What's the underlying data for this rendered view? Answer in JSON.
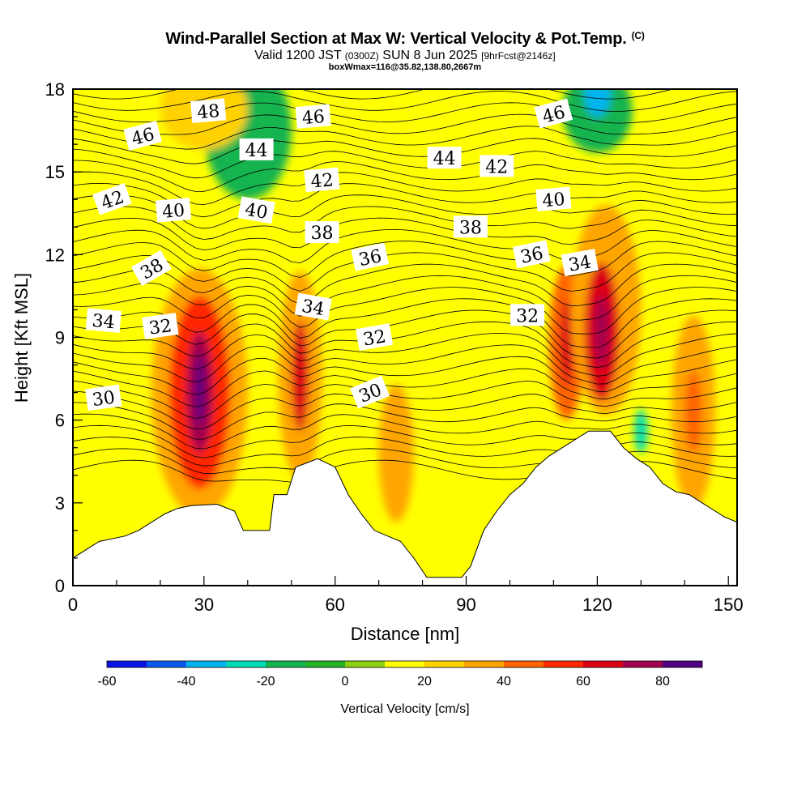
{
  "header": {
    "title_main": "Wind-Parallel Section at Max W: Vertical Velocity & Pot.Temp.",
    "title_tag": "(C)",
    "valid_prefix": "Valid 1200 JST",
    "valid_utc": "(0300Z)",
    "valid_date": "SUN 8 Jun 2025",
    "forecast": "[9hrFcst@2146z]",
    "box_info": "boxWmax=116@35.82,138.80,2667m"
  },
  "chart_data": {
    "type": "heatmap",
    "xlabel": "Distance [nm]",
    "ylabel": "Height [Kft MSL]",
    "xlim": [
      0,
      152
    ],
    "ylim": [
      0,
      18
    ],
    "x_ticks": [
      0,
      30,
      60,
      90,
      120,
      150
    ],
    "y_ticks": [
      0,
      3,
      6,
      9,
      12,
      15,
      18
    ],
    "colorbar": {
      "label": "Vertical Velocity [cm/s]",
      "range": [
        -60,
        90
      ],
      "ticks": [
        -60,
        -40,
        -20,
        0,
        20,
        40,
        60,
        80
      ],
      "colors": [
        "#0a14e6",
        "#0a5af0",
        "#00b4f0",
        "#00dcb4",
        "#14b450",
        "#28b428",
        "#8cd214",
        "#ffff00",
        "#ffd200",
        "#ffa500",
        "#ff6400",
        "#ff2800",
        "#dc0014",
        "#a00050",
        "#500082"
      ]
    },
    "terrain_kft": [
      [
        0,
        1.0
      ],
      [
        3,
        1.3
      ],
      [
        6,
        1.6
      ],
      [
        12,
        1.8
      ],
      [
        15,
        2.0
      ],
      [
        18,
        2.3
      ],
      [
        21,
        2.6
      ],
      [
        24,
        2.8
      ],
      [
        27,
        2.9
      ],
      [
        33,
        2.95
      ],
      [
        37,
        2.7
      ],
      [
        39,
        2.0
      ],
      [
        45,
        2.0
      ],
      [
        46,
        3.3
      ],
      [
        49,
        3.3
      ],
      [
        51,
        4.3
      ],
      [
        56,
        4.6
      ],
      [
        60,
        4.3
      ],
      [
        63,
        3.3
      ],
      [
        66,
        2.6
      ],
      [
        69,
        2.0
      ],
      [
        72,
        1.8
      ],
      [
        75,
        1.6
      ],
      [
        78,
        1.0
      ],
      [
        81,
        0.3
      ],
      [
        89,
        0.3
      ],
      [
        91,
        0.7
      ],
      [
        94,
        2.0
      ],
      [
        97,
        2.7
      ],
      [
        100,
        3.3
      ],
      [
        103,
        3.7
      ],
      [
        106,
        4.3
      ],
      [
        109,
        4.7
      ],
      [
        112,
        5.0
      ],
      [
        115,
        5.3
      ],
      [
        118,
        5.6
      ],
      [
        123,
        5.6
      ],
      [
        126,
        5.0
      ],
      [
        129,
        4.6
      ],
      [
        132,
        4.3
      ],
      [
        135,
        3.7
      ],
      [
        138,
        3.4
      ],
      [
        141,
        3.3
      ],
      [
        144,
        3.0
      ],
      [
        147,
        2.7
      ],
      [
        149,
        2.5
      ],
      [
        152,
        2.3
      ]
    ],
    "velocity_cells": [
      {
        "x": 29,
        "y": 7.0,
        "rx": 11,
        "ry": 4.5,
        "w": 35
      },
      {
        "x": 29,
        "y": 7.0,
        "rx": 7,
        "ry": 3.5,
        "w": 55
      },
      {
        "x": 29,
        "y": 7.0,
        "rx": 3,
        "ry": 2.2,
        "w": 75
      },
      {
        "x": 29,
        "y": 7.1,
        "rx": 1,
        "ry": 1.3,
        "w": 90
      },
      {
        "x": 52,
        "y": 7.6,
        "rx": 5,
        "ry": 3.8,
        "w": 30
      },
      {
        "x": 52,
        "y": 7.6,
        "rx": 2,
        "ry": 2.0,
        "w": 65
      },
      {
        "x": 74,
        "y": 4.8,
        "rx": 4,
        "ry": 2.5,
        "w": 30
      },
      {
        "x": 113,
        "y": 8.8,
        "rx": 4,
        "ry": 2.8,
        "w": 45
      },
      {
        "x": 113,
        "y": 8.8,
        "rx": 1.5,
        "ry": 1.6,
        "w": 65
      },
      {
        "x": 122,
        "y": 10.0,
        "rx": 8,
        "ry": 3.8,
        "w": 35
      },
      {
        "x": 121,
        "y": 9.2,
        "rx": 4,
        "ry": 2.5,
        "w": 60
      },
      {
        "x": 121,
        "y": 9.2,
        "rx": 1.5,
        "ry": 1.3,
        "w": 75
      },
      {
        "x": 142,
        "y": 6.3,
        "rx": 5,
        "ry": 3.5,
        "w": 30
      },
      {
        "x": 142,
        "y": 6.3,
        "rx": 2,
        "ry": 1.5,
        "w": 45
      },
      {
        "x": 40,
        "y": 16.5,
        "rx": 10,
        "ry": 2.5,
        "w": -20
      },
      {
        "x": 120,
        "y": 17.2,
        "rx": 8,
        "ry": 1.5,
        "w": -20
      },
      {
        "x": 120,
        "y": 17.8,
        "rx": 3,
        "ry": 0.8,
        "w": -40
      },
      {
        "x": 130,
        "y": 5.6,
        "rx": 1.5,
        "ry": 0.8,
        "w": -25
      },
      {
        "x": 30,
        "y": 17.3,
        "rx": 10,
        "ry": 1.5,
        "w": 25
      },
      {
        "x": 97,
        "y": 14.0,
        "rx": 3,
        "ry": 3.0,
        "w": 15
      }
    ],
    "isentropes": {
      "levels": [
        30,
        32,
        34,
        36,
        38,
        40,
        42,
        44,
        46,
        48
      ],
      "labels": [
        {
          "v": "30",
          "x": 7,
          "y": 6.8,
          "rot": -8
        },
        {
          "v": "30",
          "x": 68,
          "y": 7.0,
          "rot": -22
        },
        {
          "v": "32",
          "x": 20,
          "y": 9.4,
          "rot": -8
        },
        {
          "v": "32",
          "x": 69,
          "y": 9.0,
          "rot": -10
        },
        {
          "v": "32",
          "x": 104,
          "y": 9.8,
          "rot": 0
        },
        {
          "v": "34",
          "x": 7,
          "y": 9.6,
          "rot": 5
        },
        {
          "v": "34",
          "x": 55,
          "y": 10.1,
          "rot": 10
        },
        {
          "v": "34",
          "x": 116,
          "y": 11.7,
          "rot": -10
        },
        {
          "v": "36",
          "x": 68,
          "y": 11.9,
          "rot": -12
        },
        {
          "v": "36",
          "x": 105,
          "y": 12.0,
          "rot": -12
        },
        {
          "v": "38",
          "x": 18,
          "y": 11.5,
          "rot": -30
        },
        {
          "v": "38",
          "x": 57,
          "y": 12.8,
          "rot": 0
        },
        {
          "v": "38",
          "x": 91,
          "y": 13.0,
          "rot": 0
        },
        {
          "v": "40",
          "x": 23,
          "y": 13.6,
          "rot": -5
        },
        {
          "v": "40",
          "x": 42,
          "y": 13.6,
          "rot": 10
        },
        {
          "v": "40",
          "x": 110,
          "y": 14.0,
          "rot": -5
        },
        {
          "v": "42",
          "x": 9,
          "y": 14.0,
          "rot": -20
        },
        {
          "v": "42",
          "x": 57,
          "y": 14.7,
          "rot": -5
        },
        {
          "v": "42",
          "x": 97,
          "y": 15.2,
          "rot": 0
        },
        {
          "v": "44",
          "x": 42,
          "y": 15.8,
          "rot": 0
        },
        {
          "v": "44",
          "x": 85,
          "y": 15.5,
          "rot": 0
        },
        {
          "v": "46",
          "x": 16,
          "y": 16.3,
          "rot": -15
        },
        {
          "v": "46",
          "x": 55,
          "y": 17.0,
          "rot": -5
        },
        {
          "v": "46",
          "x": 110,
          "y": 17.1,
          "rot": -15
        },
        {
          "v": "48",
          "x": 31,
          "y": 17.2,
          "rot": -5
        }
      ]
    }
  }
}
